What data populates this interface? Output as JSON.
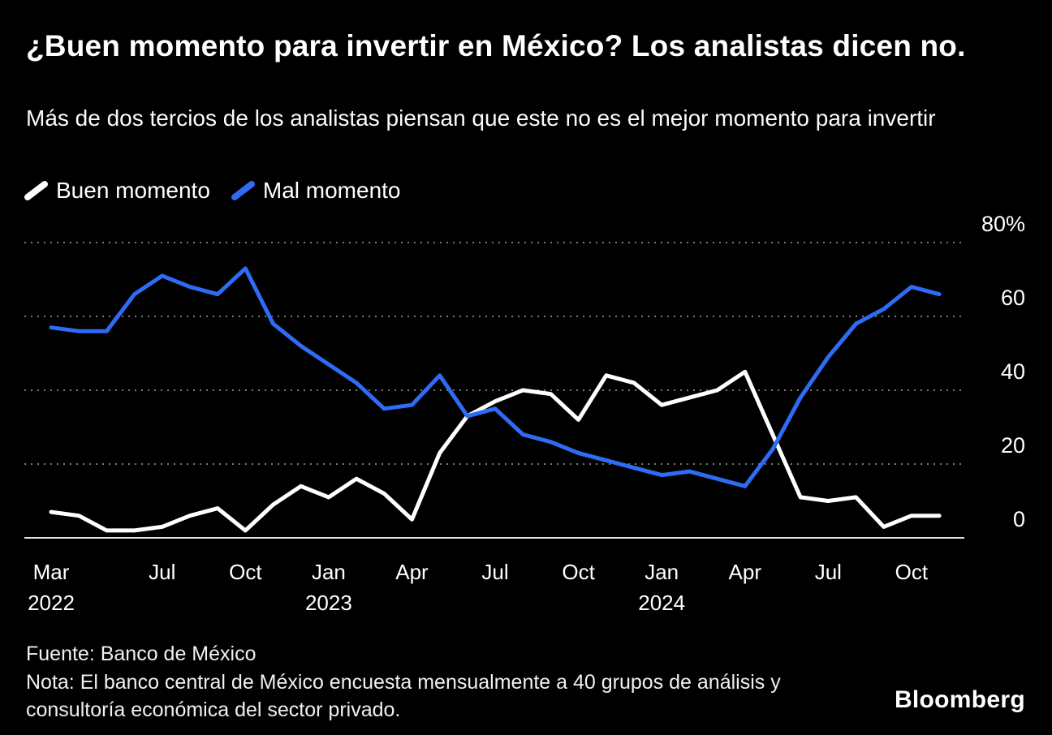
{
  "header": {
    "title": "¿Buen momento para invertir en México? Los analistas dicen no.",
    "subtitle": "Más de dos tercios de los analistas piensan que este no es el mejor momento para invertir"
  },
  "legend": [
    {
      "label": "Buen momento",
      "color": "#ffffff"
    },
    {
      "label": "Mal momento",
      "color": "#2e6cf6"
    }
  ],
  "chart_data": {
    "type": "line",
    "title": "¿Buen momento para invertir en México? Los analistas dicen no.",
    "subtitle": "Más de dos tercios de los analistas piensan que este no es el mejor momento para invertir",
    "x": [
      "Mar 2022",
      "Apr 2022",
      "May 2022",
      "Jun 2022",
      "Jul 2022",
      "Aug 2022",
      "Sep 2022",
      "Oct 2022",
      "Nov 2022",
      "Dec 2022",
      "Jan 2023",
      "Feb 2023",
      "Mar 2023",
      "Apr 2023",
      "May 2023",
      "Jun 2023",
      "Jul 2023",
      "Aug 2023",
      "Sep 2023",
      "Oct 2023",
      "Nov 2023",
      "Dec 2023",
      "Jan 2024",
      "Feb 2024",
      "Mar 2024",
      "Apr 2024",
      "May 2024",
      "Jun 2024",
      "Jul 2024",
      "Aug 2024",
      "Sep 2024",
      "Oct 2024",
      "Nov 2024"
    ],
    "series": [
      {
        "name": "Buen momento",
        "color": "#ffffff",
        "values": [
          7,
          6,
          2,
          2,
          3,
          6,
          8,
          2,
          9,
          14,
          11,
          16,
          12,
          5,
          23,
          33,
          37,
          40,
          39,
          32,
          44,
          42,
          36,
          38,
          40,
          45,
          28,
          11,
          10,
          11,
          3,
          6,
          6
        ]
      },
      {
        "name": "Mal momento",
        "color": "#2e6cf6",
        "values": [
          57,
          56,
          56,
          66,
          71,
          68,
          66,
          73,
          58,
          52,
          47,
          42,
          35,
          36,
          44,
          33,
          35,
          28,
          26,
          23,
          21,
          19,
          17,
          18,
          16,
          14,
          24,
          38,
          49,
          58,
          62,
          68,
          66
        ]
      }
    ],
    "ylim": [
      0,
      80
    ],
    "yticks": [
      {
        "v": 80,
        "label": "80%"
      },
      {
        "v": 60,
        "label": "60"
      },
      {
        "v": 40,
        "label": "40"
      },
      {
        "v": 20,
        "label": "20"
      },
      {
        "v": 0,
        "label": "0"
      }
    ],
    "xticks": [
      {
        "i": 0,
        "month": "Mar",
        "year": "2022"
      },
      {
        "i": 4,
        "month": "Jul"
      },
      {
        "i": 7,
        "month": "Oct"
      },
      {
        "i": 10,
        "month": "Jan",
        "year": "2023"
      },
      {
        "i": 13,
        "month": "Apr"
      },
      {
        "i": 16,
        "month": "Jul"
      },
      {
        "i": 19,
        "month": "Oct"
      },
      {
        "i": 22,
        "month": "Jan",
        "year": "2024"
      },
      {
        "i": 25,
        "month": "Apr"
      },
      {
        "i": 28,
        "month": "Jul"
      },
      {
        "i": 31,
        "month": "Oct"
      }
    ],
    "grid": "dotted-horizontal",
    "legend_position": "top-left"
  },
  "footer": {
    "source": "Fuente: Banco de México",
    "note": "Nota: El banco central de México encuesta mensualmente a 40 grupos de análisis y consultoría económica del sector privado.",
    "brand": "Bloomberg"
  }
}
